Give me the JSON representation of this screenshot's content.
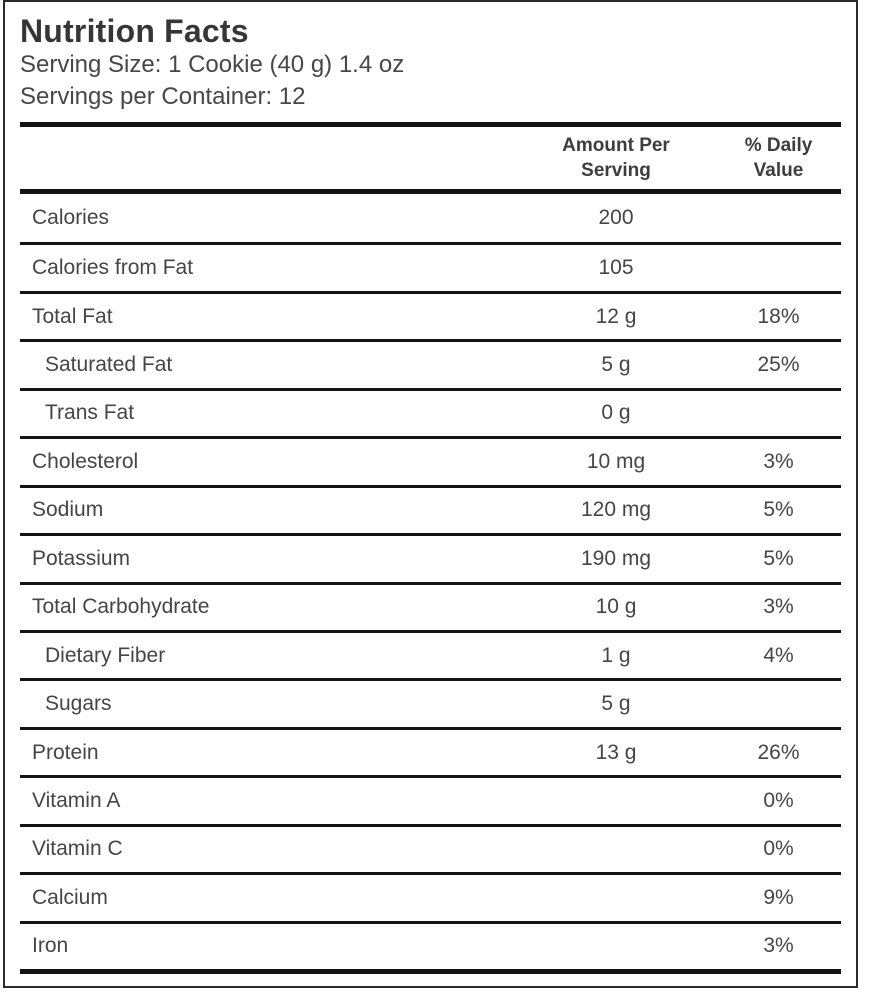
{
  "label": {
    "title": "Nutrition Facts",
    "serving_size": "Serving Size: 1 Cookie (40 g) 1.4 oz",
    "servings_per_container": "Servings per Container: 12",
    "columns": {
      "amount_header": "Amount Per Serving",
      "daily_value_header": "% Daily Value"
    },
    "rows": [
      {
        "name": "Calories",
        "amount": "200",
        "dv": "",
        "indent": false
      },
      {
        "name": "Calories from Fat",
        "amount": "105",
        "dv": "",
        "indent": false
      },
      {
        "name": "Total Fat",
        "amount": "12 g",
        "dv": "18%",
        "indent": false
      },
      {
        "name": "Saturated Fat",
        "amount": "5 g",
        "dv": "25%",
        "indent": true
      },
      {
        "name": "Trans Fat",
        "amount": "0 g",
        "dv": "",
        "indent": true
      },
      {
        "name": "Cholesterol",
        "amount": "10 mg",
        "dv": "3%",
        "indent": false
      },
      {
        "name": "Sodium",
        "amount": "120 mg",
        "dv": "5%",
        "indent": false
      },
      {
        "name": "Potassium",
        "amount": "190 mg",
        "dv": "5%",
        "indent": false
      },
      {
        "name": "Total Carbohydrate",
        "amount": "10 g",
        "dv": "3%",
        "indent": false
      },
      {
        "name": "Dietary Fiber",
        "amount": "1 g",
        "dv": "4%",
        "indent": true
      },
      {
        "name": "Sugars",
        "amount": "5 g",
        "dv": "",
        "indent": true
      },
      {
        "name": "Protein",
        "amount": "13 g",
        "dv": "26%",
        "indent": false
      },
      {
        "name": "Vitamin A",
        "amount": "",
        "dv": "0%",
        "indent": false
      },
      {
        "name": "Vitamin C",
        "amount": "",
        "dv": "0%",
        "indent": false
      },
      {
        "name": "Calcium",
        "amount": "",
        "dv": "9%",
        "indent": false
      },
      {
        "name": "Iron",
        "amount": "",
        "dv": "3%",
        "indent": false
      }
    ],
    "colors": {
      "text": "#454545",
      "title_text": "#363636",
      "rule_lines": "#141414",
      "background": "#ffffff",
      "outer_border": "#2a2a2a"
    }
  }
}
